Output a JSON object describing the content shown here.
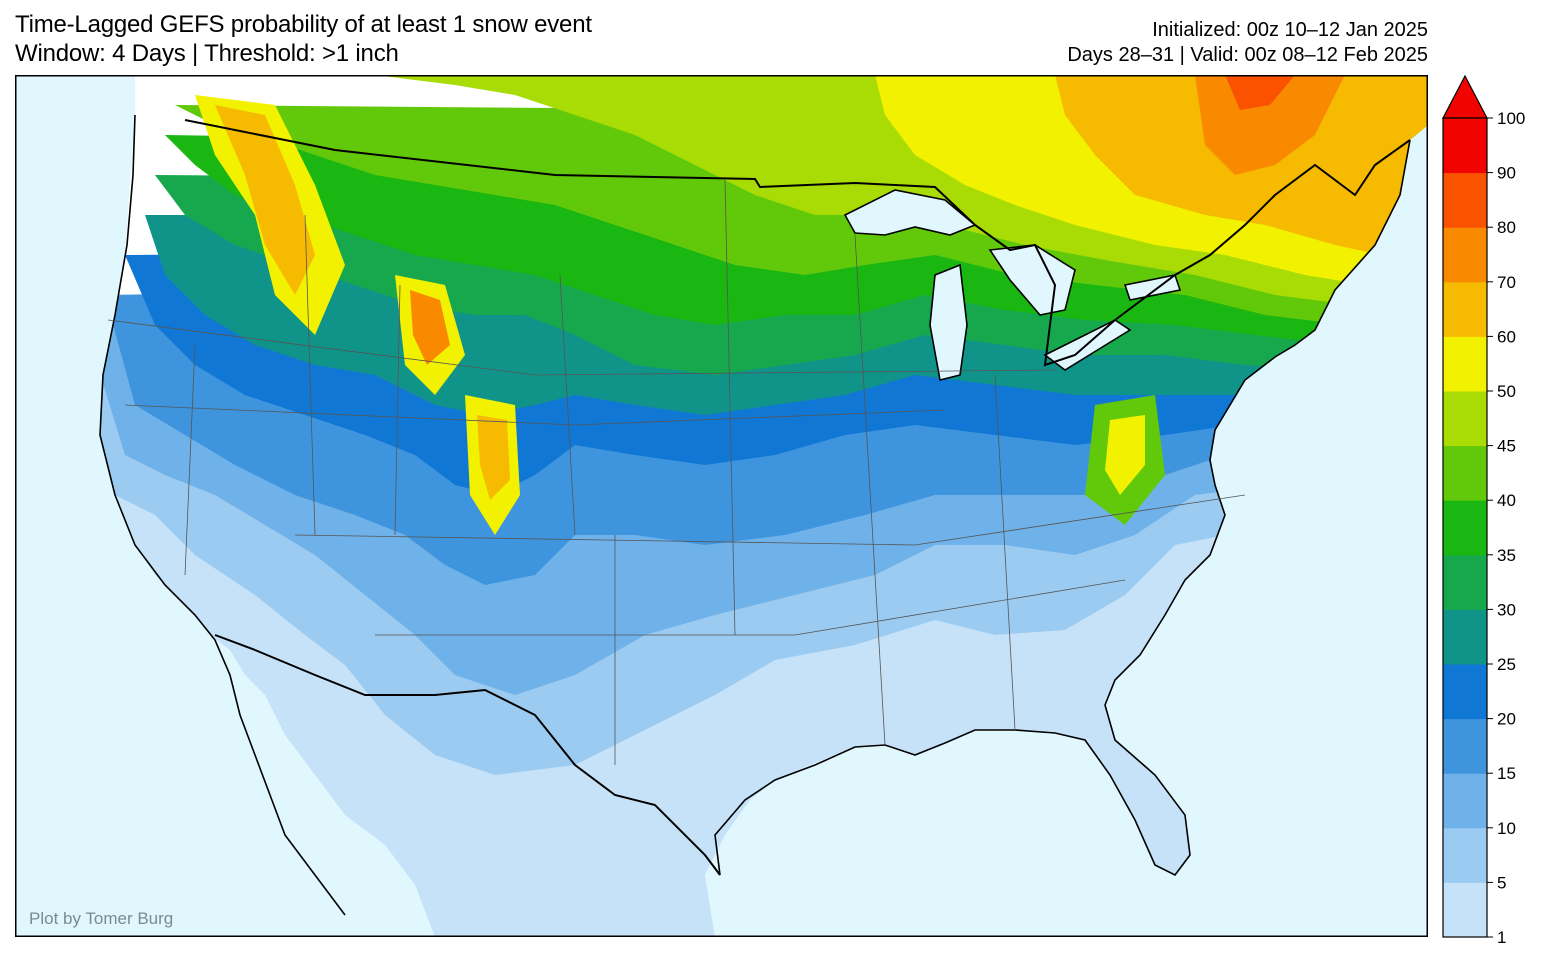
{
  "header": {
    "title_line1": "Time-Lagged GEFS probability of at least 1 snow event",
    "title_line2": "Window: 4 Days | Threshold: >1 inch",
    "init_line": "Initialized: 00z 10–12 Jan 2025",
    "valid_line": "Days 28–31 | Valid: 00z 08–12 Feb 2025"
  },
  "credit": "Plot by Tomer Burg",
  "colorbar": {
    "ticks": [
      "1",
      "5",
      "10",
      "15",
      "20",
      "25",
      "30",
      "35",
      "40",
      "45",
      "50",
      "60",
      "70",
      "80",
      "90",
      "100"
    ],
    "colors": [
      "#c6e2f8",
      "#9ccbf1",
      "#6fb1e9",
      "#3f95dd",
      "#1177d4",
      "#10948a",
      "#17a84d",
      "#1ab612",
      "#62c80a",
      "#a9dc04",
      "#f2f200",
      "#f6bb00",
      "#f98a00",
      "#fb5200",
      "#f10400"
    ],
    "extend_color": "#f10400"
  },
  "map": {
    "ocean_color": "#e1f7fe",
    "land_color": "#ffffff",
    "lake_color": "#e1f7fe"
  }
}
